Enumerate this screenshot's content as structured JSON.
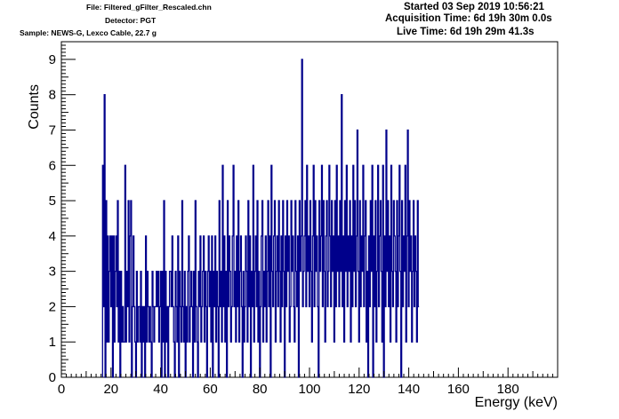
{
  "header": {
    "file": "File: Filtered_gFilter_Rescaled.chn",
    "detector": "Detector: PGT",
    "sample": "Sample: NEWS-G, Lexco Cable, 22.7 g",
    "started": "Started 03 Sep 2019 10:56:21",
    "acquisition_time": "Acquisition Time: 6d 19h 30m 0.0s",
    "live_time": "Live Time: 6d 19h 29m 41.3s"
  },
  "chart_data": {
    "type": "histogram",
    "xlabel": "Energy (keV)",
    "ylabel": "Counts",
    "xlim": [
      0,
      200
    ],
    "ylim": [
      0,
      9.5
    ],
    "xticks": [
      0,
      20,
      40,
      60,
      80,
      100,
      120,
      140,
      160,
      180
    ],
    "yticks": [
      0,
      1,
      2,
      3,
      4,
      5,
      6,
      7,
      8,
      9
    ],
    "grid": false,
    "legend": "none",
    "line_color": "#00008b",
    "bin_width_keV": 0.333,
    "first_bin_keV": 16.6,
    "counts": [
      6,
      2,
      8,
      0,
      5,
      1,
      4,
      1,
      3,
      4,
      2,
      4,
      0,
      4,
      1,
      3,
      4,
      2,
      5,
      1,
      3,
      0,
      3,
      1,
      2,
      1,
      1,
      6,
      1,
      3,
      2,
      5,
      1,
      4,
      5,
      0,
      2,
      4,
      2,
      1,
      0,
      3,
      1,
      2,
      2,
      1,
      3,
      0,
      2,
      1,
      2,
      0,
      4,
      1,
      3,
      2,
      1,
      2,
      1,
      0,
      3,
      2,
      1,
      2,
      2,
      3,
      2,
      3,
      1,
      2,
      3,
      0,
      3,
      1,
      5,
      0,
      3,
      1,
      2,
      0,
      2,
      3,
      3,
      2,
      4,
      2,
      1,
      0,
      3,
      2,
      1,
      4,
      0,
      3,
      2,
      1,
      5,
      2,
      1,
      3,
      0,
      2,
      1,
      3,
      4,
      1,
      2,
      3,
      2,
      0,
      3,
      1,
      5,
      2,
      1,
      0,
      3,
      2,
      4,
      1,
      2,
      3,
      4,
      1,
      3,
      2,
      0,
      3,
      4,
      2,
      3,
      1,
      4,
      0,
      3,
      2,
      4,
      1,
      3,
      2,
      0,
      5,
      2,
      3,
      1,
      6,
      2,
      4,
      1,
      3,
      0,
      5,
      2,
      4,
      3,
      1,
      2,
      4,
      6,
      2,
      3,
      1,
      4,
      2,
      5,
      1,
      3,
      4,
      2,
      0,
      3,
      1,
      2,
      4,
      3,
      1,
      5,
      2,
      4,
      0,
      3,
      2,
      6,
      1,
      3,
      4,
      2,
      5,
      1,
      3,
      0,
      2,
      4,
      5,
      1,
      3,
      2,
      4,
      1,
      3,
      5,
      2,
      4,
      0,
      6,
      3,
      2,
      4,
      5,
      1,
      3,
      4,
      2,
      5,
      3,
      1,
      4,
      2,
      5,
      3,
      0,
      4,
      2,
      5,
      3,
      4,
      1,
      2,
      5,
      3,
      4,
      2,
      1,
      5,
      3,
      2,
      4,
      0,
      5,
      3,
      4,
      9,
      2,
      3,
      4,
      5,
      2,
      6,
      3,
      4,
      2,
      5,
      3,
      1,
      4,
      6,
      2,
      5,
      3,
      4,
      2,
      0,
      5,
      3,
      4,
      6,
      2,
      5,
      3,
      1,
      4,
      5,
      2,
      3,
      6,
      4,
      2,
      5,
      3,
      4,
      1,
      5,
      2,
      6,
      3,
      4,
      2,
      5,
      3,
      8,
      2,
      4,
      1,
      5,
      3,
      6,
      2,
      4,
      3,
      5,
      1,
      4,
      2,
      6,
      3,
      5,
      2,
      4,
      7,
      3,
      1,
      5,
      2,
      4,
      3,
      6,
      2,
      4,
      5,
      1,
      3,
      0,
      4,
      2,
      5,
      3,
      6,
      0,
      4,
      2,
      5,
      1,
      3,
      6,
      2,
      4,
      5,
      3,
      1,
      6,
      0,
      4,
      2,
      7,
      3,
      5,
      2,
      4,
      1,
      6,
      3,
      2,
      5,
      4,
      3,
      1,
      5,
      2,
      4,
      6,
      3,
      0,
      5,
      2,
      4,
      3,
      6,
      1,
      4,
      7,
      2,
      5,
      3,
      4,
      1,
      3,
      5,
      2,
      4,
      3,
      1,
      5,
      2
    ]
  }
}
